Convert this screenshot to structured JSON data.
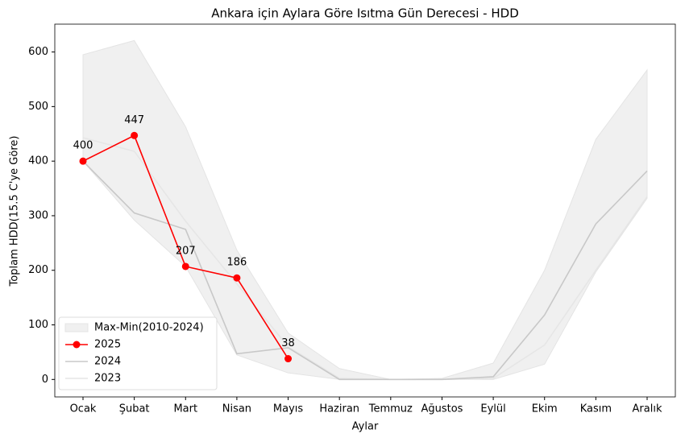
{
  "chart_data": {
    "type": "line",
    "title": "Ankara için Aylara Göre Isıtma Gün Derecesi - HDD",
    "xlabel": "Aylar",
    "ylabel": "Toplam HDD(15.5 C'ye Göre)",
    "categories": [
      "Ocak",
      "Şubat",
      "Mart",
      "Nisan",
      "Mayıs",
      "Haziran",
      "Temmuz",
      "Ağustos",
      "Eylül",
      "Ekim",
      "Kasım",
      "Aralık"
    ],
    "ylim": [
      -32,
      651
    ],
    "yticks": [
      0,
      100,
      200,
      300,
      400,
      500,
      600
    ],
    "band": {
      "name": "Max-Min(2010-2024)",
      "color": "#f0f0f0",
      "edge": "#e4e4e4",
      "max": [
        595,
        621,
        463,
        237,
        85,
        20,
        0,
        2,
        30,
        200,
        440,
        567
      ],
      "min": [
        400,
        292,
        207,
        45,
        12,
        0,
        0,
        0,
        0,
        28,
        197,
        332
      ]
    },
    "series": [
      {
        "name": "2025",
        "color": "#ff0000",
        "marker": true,
        "data_labels": true,
        "values": [
          400,
          447,
          207,
          186,
          38,
          null,
          null,
          null,
          null,
          null,
          null,
          null
        ]
      },
      {
        "name": "2024",
        "color": "#c8c8c8",
        "marker": false,
        "data_labels": false,
        "values": [
          400,
          305,
          275,
          47,
          58,
          0,
          0,
          0,
          5,
          118,
          285,
          382
        ]
      },
      {
        "name": "2023",
        "color": "#e6e6e6",
        "marker": false,
        "data_labels": false,
        "values": [
          443,
          418,
          290,
          175,
          60,
          2,
          0,
          0,
          2,
          63,
          200,
          335
        ]
      }
    ],
    "legend": "lower left"
  }
}
